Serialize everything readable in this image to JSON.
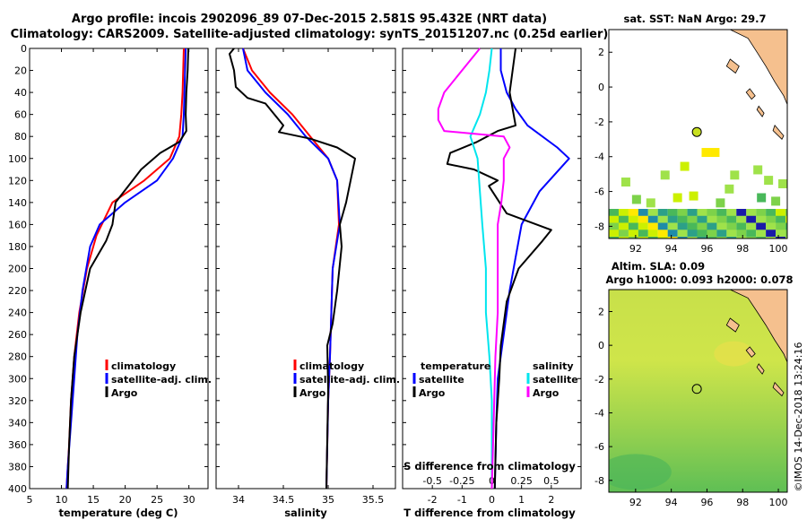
{
  "title_line1": "Argo profile: incois 2902096_89 07-Dec-2015 2.581S 95.432E (NRT data)",
  "title_line2": "Climatology: CARS2009. Satellite-adjusted climatology: synTS_20151207.nc (0.25d earlier)",
  "colors": {
    "climatology": "#ff0000",
    "satellite": "#0000ff",
    "argo": "#000000",
    "sat_s": "#00e5ee",
    "argo_s": "#ff00ff"
  },
  "chart_data": [
    {
      "type": "line",
      "xlabel": "temperature (deg C)",
      "ylabel": "",
      "xlim": [
        5,
        33
      ],
      "ylim": [
        400,
        0
      ],
      "xticks": [
        5,
        10,
        15,
        20,
        25,
        30
      ],
      "yticks": [
        0,
        20,
        40,
        60,
        80,
        100,
        120,
        140,
        160,
        180,
        200,
        220,
        240,
        260,
        280,
        300,
        320,
        340,
        360,
        380,
        400
      ],
      "legend": [
        "climatology",
        "satellite-adj. clim.",
        "Argo"
      ],
      "series": [
        {
          "name": "climatology",
          "color": "#ff0000",
          "points": [
            [
              29.2,
              0
            ],
            [
              29.1,
              20
            ],
            [
              29,
              40
            ],
            [
              28.8,
              60
            ],
            [
              28.5,
              80
            ],
            [
              27,
              100
            ],
            [
              23,
              120
            ],
            [
              18,
              140
            ],
            [
              15.5,
              170
            ],
            [
              14,
              200
            ],
            [
              12.8,
              240
            ],
            [
              12,
              280
            ],
            [
              11.5,
              320
            ],
            [
              11.2,
              360
            ],
            [
              10.8,
              400
            ]
          ]
        },
        {
          "name": "satellite-adj. clim.",
          "color": "#0000ff",
          "points": [
            [
              29.5,
              0
            ],
            [
              29.4,
              20
            ],
            [
              29.3,
              40
            ],
            [
              29.2,
              60
            ],
            [
              29,
              80
            ],
            [
              27.5,
              100
            ],
            [
              25,
              120
            ],
            [
              20,
              140
            ],
            [
              16,
              160
            ],
            [
              14.5,
              180
            ],
            [
              13.3,
              220
            ],
            [
              12.5,
              260
            ],
            [
              12,
              300
            ],
            [
              11.5,
              340
            ],
            [
              11,
              380
            ],
            [
              10.8,
              400
            ]
          ]
        },
        {
          "name": "Argo",
          "color": "#000000",
          "points": [
            [
              29.9,
              0
            ],
            [
              29.8,
              20
            ],
            [
              29.6,
              40
            ],
            [
              29.5,
              60
            ],
            [
              29.6,
              75
            ],
            [
              28.5,
              85
            ],
            [
              25.5,
              95
            ],
            [
              22.5,
              110
            ],
            [
              20.5,
              125
            ],
            [
              18.5,
              140
            ],
            [
              18,
              160
            ],
            [
              17,
              175
            ],
            [
              14.5,
              200
            ],
            [
              13,
              240
            ],
            [
              12,
              280
            ],
            [
              11.5,
              320
            ],
            [
              11.2,
              360
            ],
            [
              11,
              400
            ]
          ]
        }
      ]
    },
    {
      "type": "line",
      "xlabel": "salinity",
      "xlim": [
        33.75,
        35.75
      ],
      "ylim": [
        400,
        0
      ],
      "xticks": [
        34,
        34.5,
        35,
        35.5
      ],
      "legend": [
        "climatology",
        "satellite-adj. clim.",
        "Argo"
      ],
      "series": [
        {
          "name": "climatology",
          "color": "#ff0000",
          "points": [
            [
              34.05,
              0
            ],
            [
              34.15,
              20
            ],
            [
              34.35,
              40
            ],
            [
              34.6,
              60
            ],
            [
              34.8,
              80
            ],
            [
              35,
              100
            ],
            [
              35.1,
              120
            ],
            [
              35.12,
              160
            ],
            [
              35.05,
              200
            ],
            [
              35.02,
              280
            ],
            [
              35,
              320
            ],
            [
              34.98,
              400
            ]
          ]
        },
        {
          "name": "satellite-adj. clim.",
          "color": "#0000ff",
          "points": [
            [
              34.05,
              0
            ],
            [
              34.1,
              20
            ],
            [
              34.3,
              40
            ],
            [
              34.55,
              60
            ],
            [
              34.75,
              80
            ],
            [
              35,
              100
            ],
            [
              35.1,
              120
            ],
            [
              35.13,
              160
            ],
            [
              35.05,
              200
            ],
            [
              35.02,
              280
            ],
            [
              35,
              320
            ],
            [
              34.98,
              400
            ]
          ]
        },
        {
          "name": "Argo",
          "color": "#000000",
          "points": [
            [
              33.95,
              0
            ],
            [
              33.9,
              5
            ],
            [
              33.95,
              20
            ],
            [
              33.97,
              35
            ],
            [
              34.1,
              45
            ],
            [
              34.3,
              50
            ],
            [
              34.4,
              60
            ],
            [
              34.5,
              70
            ],
            [
              34.45,
              76
            ],
            [
              34.8,
              82
            ],
            [
              35.1,
              90
            ],
            [
              35.3,
              100
            ],
            [
              35.25,
              120
            ],
            [
              35.2,
              140
            ],
            [
              35.13,
              160
            ],
            [
              35.15,
              180
            ],
            [
              35.1,
              220
            ],
            [
              35.05,
              250
            ],
            [
              34.99,
              270
            ],
            [
              35,
              310
            ],
            [
              34.98,
              400
            ]
          ]
        }
      ]
    },
    {
      "type": "line",
      "xlabel": "T difference from climatology",
      "xlabel_top": "S difference from climatology",
      "xlim": [
        -3,
        3
      ],
      "ylim": [
        400,
        0
      ],
      "xticks": [
        -2,
        -1,
        0,
        1,
        2
      ],
      "xticks_top_labels": [
        "-0.5",
        "-0.25",
        "0",
        "0.25",
        "0.5"
      ],
      "legend_temperature_title": "temperature",
      "legend_salinity_title": "salinity",
      "legend_items": [
        "satellite",
        "Argo"
      ],
      "series": [
        {
          "name": "T satellite",
          "color": "#0000ff",
          "points": [
            [
              0.3,
              0
            ],
            [
              0.3,
              20
            ],
            [
              0.5,
              40
            ],
            [
              0.8,
              55
            ],
            [
              1.2,
              70
            ],
            [
              2.2,
              90
            ],
            [
              2.6,
              100
            ],
            [
              1.6,
              130
            ],
            [
              1,
              160
            ],
            [
              0.8,
              190
            ],
            [
              0.6,
              220
            ],
            [
              0.4,
              260
            ],
            [
              0.2,
              300
            ],
            [
              0.15,
              340
            ],
            [
              0.1,
              400
            ]
          ]
        },
        {
          "name": "T Argo",
          "color": "#000000",
          "points": [
            [
              0.8,
              0
            ],
            [
              0.7,
              20
            ],
            [
              0.6,
              40
            ],
            [
              0.7,
              55
            ],
            [
              0.8,
              70
            ],
            [
              0.2,
              75
            ],
            [
              -0.5,
              85
            ],
            [
              -1.4,
              95
            ],
            [
              -1.5,
              105
            ],
            [
              -0.6,
              110
            ],
            [
              -0.2,
              115
            ],
            [
              0.2,
              120
            ],
            [
              -0.1,
              125
            ],
            [
              0.5,
              150
            ],
            [
              2,
              165
            ],
            [
              1.7,
              175
            ],
            [
              0.9,
              200
            ],
            [
              0.5,
              230
            ],
            [
              0.3,
              270
            ],
            [
              0.25,
              300
            ],
            [
              0.15,
              340
            ],
            [
              0.1,
              400
            ]
          ]
        },
        {
          "name": "S satellite",
          "color": "#00e5ee",
          "points": [
            [
              0,
              0
            ],
            [
              -0.02,
              20
            ],
            [
              -0.05,
              40
            ],
            [
              -0.1,
              60
            ],
            [
              -0.18,
              80
            ],
            [
              -0.12,
              100
            ],
            [
              -0.1,
              130
            ],
            [
              -0.08,
              160
            ],
            [
              -0.05,
              200
            ],
            [
              -0.05,
              240
            ],
            [
              -0.02,
              280
            ],
            [
              0,
              320
            ],
            [
              0,
              400
            ]
          ]
        },
        {
          "name": "S Argo",
          "color": "#ff00ff",
          "points": [
            [
              -0.1,
              0
            ],
            [
              -0.25,
              20
            ],
            [
              -0.4,
              40
            ],
            [
              -0.45,
              55
            ],
            [
              -0.45,
              65
            ],
            [
              -0.4,
              75
            ],
            [
              0.1,
              80
            ],
            [
              0.15,
              90
            ],
            [
              0.1,
              100
            ],
            [
              0.1,
              120
            ],
            [
              0.08,
              140
            ],
            [
              0.05,
              160
            ],
            [
              0.05,
              200
            ],
            [
              0.05,
              240
            ],
            [
              0.03,
              280
            ],
            [
              0.02,
              320
            ],
            [
              0,
              400
            ]
          ]
        }
      ]
    }
  ],
  "maps": {
    "sst_title": "sat. SST: NaN Argo: 29.7",
    "sla_title_line1": "Altim. SLA: 0.09",
    "sla_title_line2": "Argo h1000: 0.093 h2000: 0.078",
    "xticks": [
      92,
      94,
      96,
      98,
      100
    ],
    "yticks": [
      2,
      0,
      -2,
      -4,
      -6,
      -8
    ],
    "xlim": [
      90.5,
      100.5
    ],
    "ylim": [
      -8.7,
      3.3
    ],
    "argo_position": {
      "lon": 95.432,
      "lat": -2.581
    }
  },
  "footer": "©IMOS 14-Dec-2018 13:24:16"
}
